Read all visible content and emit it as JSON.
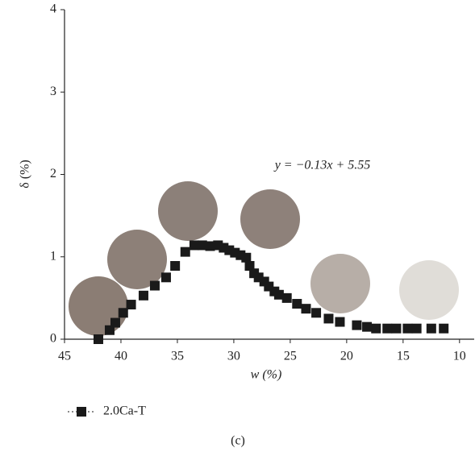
{
  "chart_data": {
    "type": "scatter",
    "x_label": "w (%)",
    "y_label": "δ (%)",
    "annotation": "y = −0.13x + 5.55",
    "caption": "(c)",
    "xlim": [
      45,
      8.7
    ],
    "ylim": [
      0,
      4
    ],
    "xticks": [
      45,
      40,
      35,
      30,
      25,
      20,
      15,
      10
    ],
    "yticks": [
      0,
      1,
      2,
      3,
      4
    ],
    "grid": false,
    "legend": "bottom-left",
    "series": [
      {
        "name": "2.0Ca-T",
        "color": "#1a1a1a",
        "x": [
          42,
          41,
          40.5,
          39.8,
          39.1,
          38.0,
          37.0,
          36.0,
          35.2,
          34.3,
          33.5,
          32.8,
          32.1,
          31.4,
          30.9,
          30.4,
          29.9,
          29.4,
          28.9,
          28.6,
          28.2,
          27.8,
          27.3,
          26.9,
          26.4,
          26.0,
          25.3,
          24.4,
          23.6,
          22.7,
          21.6,
          20.6,
          19.1,
          18.2,
          17.4,
          16.4,
          15.6,
          14.6,
          13.8,
          12.5,
          11.4
        ],
        "values": [
          0,
          0.11,
          0.2,
          0.32,
          0.42,
          0.53,
          0.65,
          0.75,
          0.89,
          1.06,
          1.14,
          1.14,
          1.13,
          1.14,
          1.11,
          1.08,
          1.05,
          1.02,
          0.99,
          0.89,
          0.8,
          0.75,
          0.7,
          0.64,
          0.58,
          0.54,
          0.5,
          0.43,
          0.37,
          0.32,
          0.25,
          0.21,
          0.17,
          0.15,
          0.13,
          0.13,
          0.13,
          0.13,
          0.13,
          0.13,
          0.13
        ]
      }
    ]
  }
}
